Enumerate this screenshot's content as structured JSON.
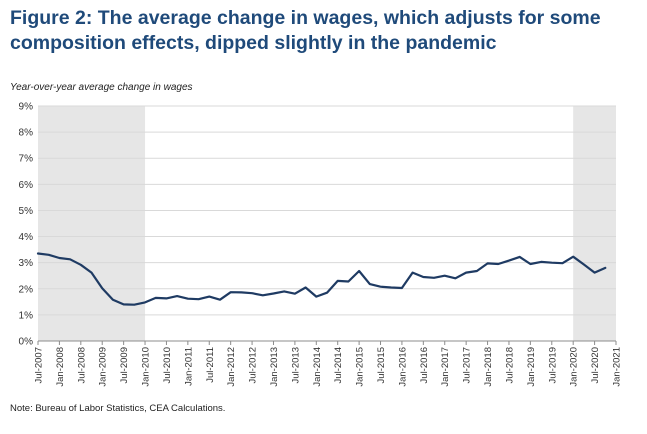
{
  "figure": {
    "title": "Figure 2: The average change in wages, which adjusts for some composition effects, dipped slightly in the pandemic",
    "note": "Note: Bureau of Labor Statistics, CEA Calculations."
  },
  "colors": {
    "title": "#1f4a7a",
    "series_line": "#1f3b63",
    "recession_shading": "#e6e6e6",
    "gridline": "#d9d9d9"
  },
  "chart_data": {
    "type": "line",
    "title": "Figure 2: The average change in wages, which adjusts for some composition effects, dipped slightly in the pandemic",
    "ylabel": "Year-over-year average change in wages",
    "xlabel": "",
    "ylim": [
      0,
      9
    ],
    "y_unit": "%",
    "y_ticks": [
      0,
      1,
      2,
      3,
      4,
      5,
      6,
      7,
      8,
      9
    ],
    "y_tick_labels": [
      "0%",
      "1%",
      "2%",
      "3%",
      "4%",
      "5%",
      "6%",
      "7%",
      "8%",
      "9%"
    ],
    "xlim": [
      "2007-07",
      "2021-01"
    ],
    "x_ticks": [
      "2007-07",
      "2008-01",
      "2008-07",
      "2009-01",
      "2009-07",
      "2010-01",
      "2010-07",
      "2011-01",
      "2011-07",
      "2012-01",
      "2012-07",
      "2013-01",
      "2013-07",
      "2014-01",
      "2014-07",
      "2015-01",
      "2015-07",
      "2016-01",
      "2016-07",
      "2017-01",
      "2017-07",
      "2018-01",
      "2018-07",
      "2019-01",
      "2019-07",
      "2020-01",
      "2020-07",
      "2021-01"
    ],
    "x_tick_labels": [
      "Jul-2007",
      "Jan-2008",
      "Jul-2008",
      "Jan-2009",
      "Jul-2009",
      "Jan-2010",
      "Jul-2010",
      "Jan-2011",
      "Jul-2011",
      "Jan-2012",
      "Jul-2012",
      "Jan-2013",
      "Jul-2013",
      "Jan-2014",
      "Jul-2014",
      "Jan-2015",
      "Jul-2015",
      "Jan-2016",
      "Jul-2016",
      "Jan-2017",
      "Jul-2017",
      "Jan-2018",
      "Jul-2018",
      "Jan-2019",
      "Jul-2019",
      "Jan-2020",
      "Jul-2020",
      "Jan-2021"
    ],
    "grid": "horizontal",
    "legend": "none",
    "shaded_periods": [
      {
        "start": "2007-07",
        "end": "2010-01"
      },
      {
        "start": "2020-01",
        "end": "2021-01"
      }
    ],
    "series": [
      {
        "x": [
          "2007-07",
          "2007-10",
          "2008-01",
          "2008-04",
          "2008-07",
          "2008-10",
          "2009-01",
          "2009-04",
          "2009-07",
          "2009-10",
          "2010-01",
          "2010-04",
          "2010-07",
          "2010-10",
          "2011-01",
          "2011-04",
          "2011-07",
          "2011-10",
          "2012-01",
          "2012-04",
          "2012-07",
          "2012-10",
          "2013-01",
          "2013-04",
          "2013-07",
          "2013-10",
          "2014-01",
          "2014-04",
          "2014-07",
          "2014-10",
          "2015-01",
          "2015-04",
          "2015-07",
          "2015-10",
          "2016-01",
          "2016-04",
          "2016-07",
          "2016-10",
          "2017-01",
          "2017-04",
          "2017-07",
          "2017-10",
          "2018-01",
          "2018-04",
          "2018-07",
          "2018-10",
          "2019-01",
          "2019-04",
          "2019-07",
          "2019-10",
          "2020-01",
          "2020-04",
          "2020-07",
          "2020-10"
        ],
        "values": [
          3.35,
          3.3,
          3.18,
          3.13,
          2.92,
          2.62,
          2.02,
          1.58,
          1.4,
          1.39,
          1.48,
          1.65,
          1.63,
          1.72,
          1.62,
          1.6,
          1.7,
          1.58,
          1.87,
          1.86,
          1.83,
          1.75,
          1.82,
          1.9,
          1.81,
          2.05,
          1.7,
          1.85,
          2.3,
          2.28,
          2.68,
          2.18,
          2.08,
          2.05,
          2.03,
          2.62,
          2.45,
          2.42,
          2.5,
          2.4,
          2.62,
          2.68,
          2.97,
          2.95,
          3.08,
          3.22,
          2.95,
          3.03,
          3.0,
          2.98,
          3.23,
          2.93,
          2.62,
          2.8
        ]
      }
    ]
  }
}
